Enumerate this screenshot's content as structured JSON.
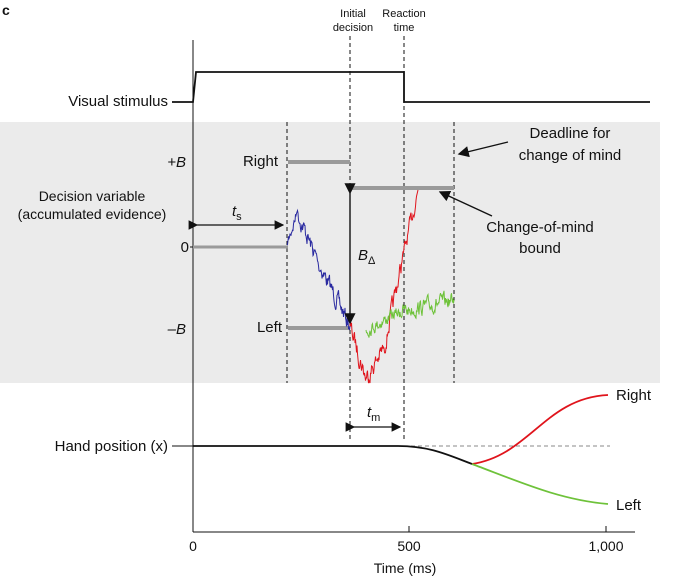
{
  "panel_letter": "c",
  "top_labels": {
    "initial_decision": [
      "Initial",
      "decision"
    ],
    "reaction_time": [
      "Reaction",
      "time"
    ]
  },
  "rows": {
    "stimulus": "Visual stimulus",
    "decision_variable": [
      "Decision variable",
      "(accumulated evidence)"
    ],
    "hand_position": "Hand position (x)"
  },
  "levels": {
    "plus_b": "+B",
    "zero": "0",
    "minus_b": "–B"
  },
  "choices": {
    "right": "Right",
    "left": "Left"
  },
  "intervals": {
    "ts": "t",
    "ts_sub": "s",
    "tm": "t",
    "tm_sub": "m",
    "b_delta": "B",
    "b_delta_sub": "Δ"
  },
  "annotations": {
    "deadline": [
      "Deadline for",
      "change of mind"
    ],
    "com_bound": [
      "Change-of-mind",
      "bound"
    ]
  },
  "hand_outcomes": {
    "right": "Right",
    "left": "Left"
  },
  "x_axis": {
    "label": "Time (ms)",
    "ticks": [
      "0",
      "500",
      "1,000"
    ]
  },
  "colors": {
    "shade": "#ebebeb",
    "bound": "#9a9a9a",
    "initial_trace": "#2a2aa0",
    "change_trace": "#e0141c",
    "stay_trace": "#6ec23a",
    "axis": "#111111"
  }
}
